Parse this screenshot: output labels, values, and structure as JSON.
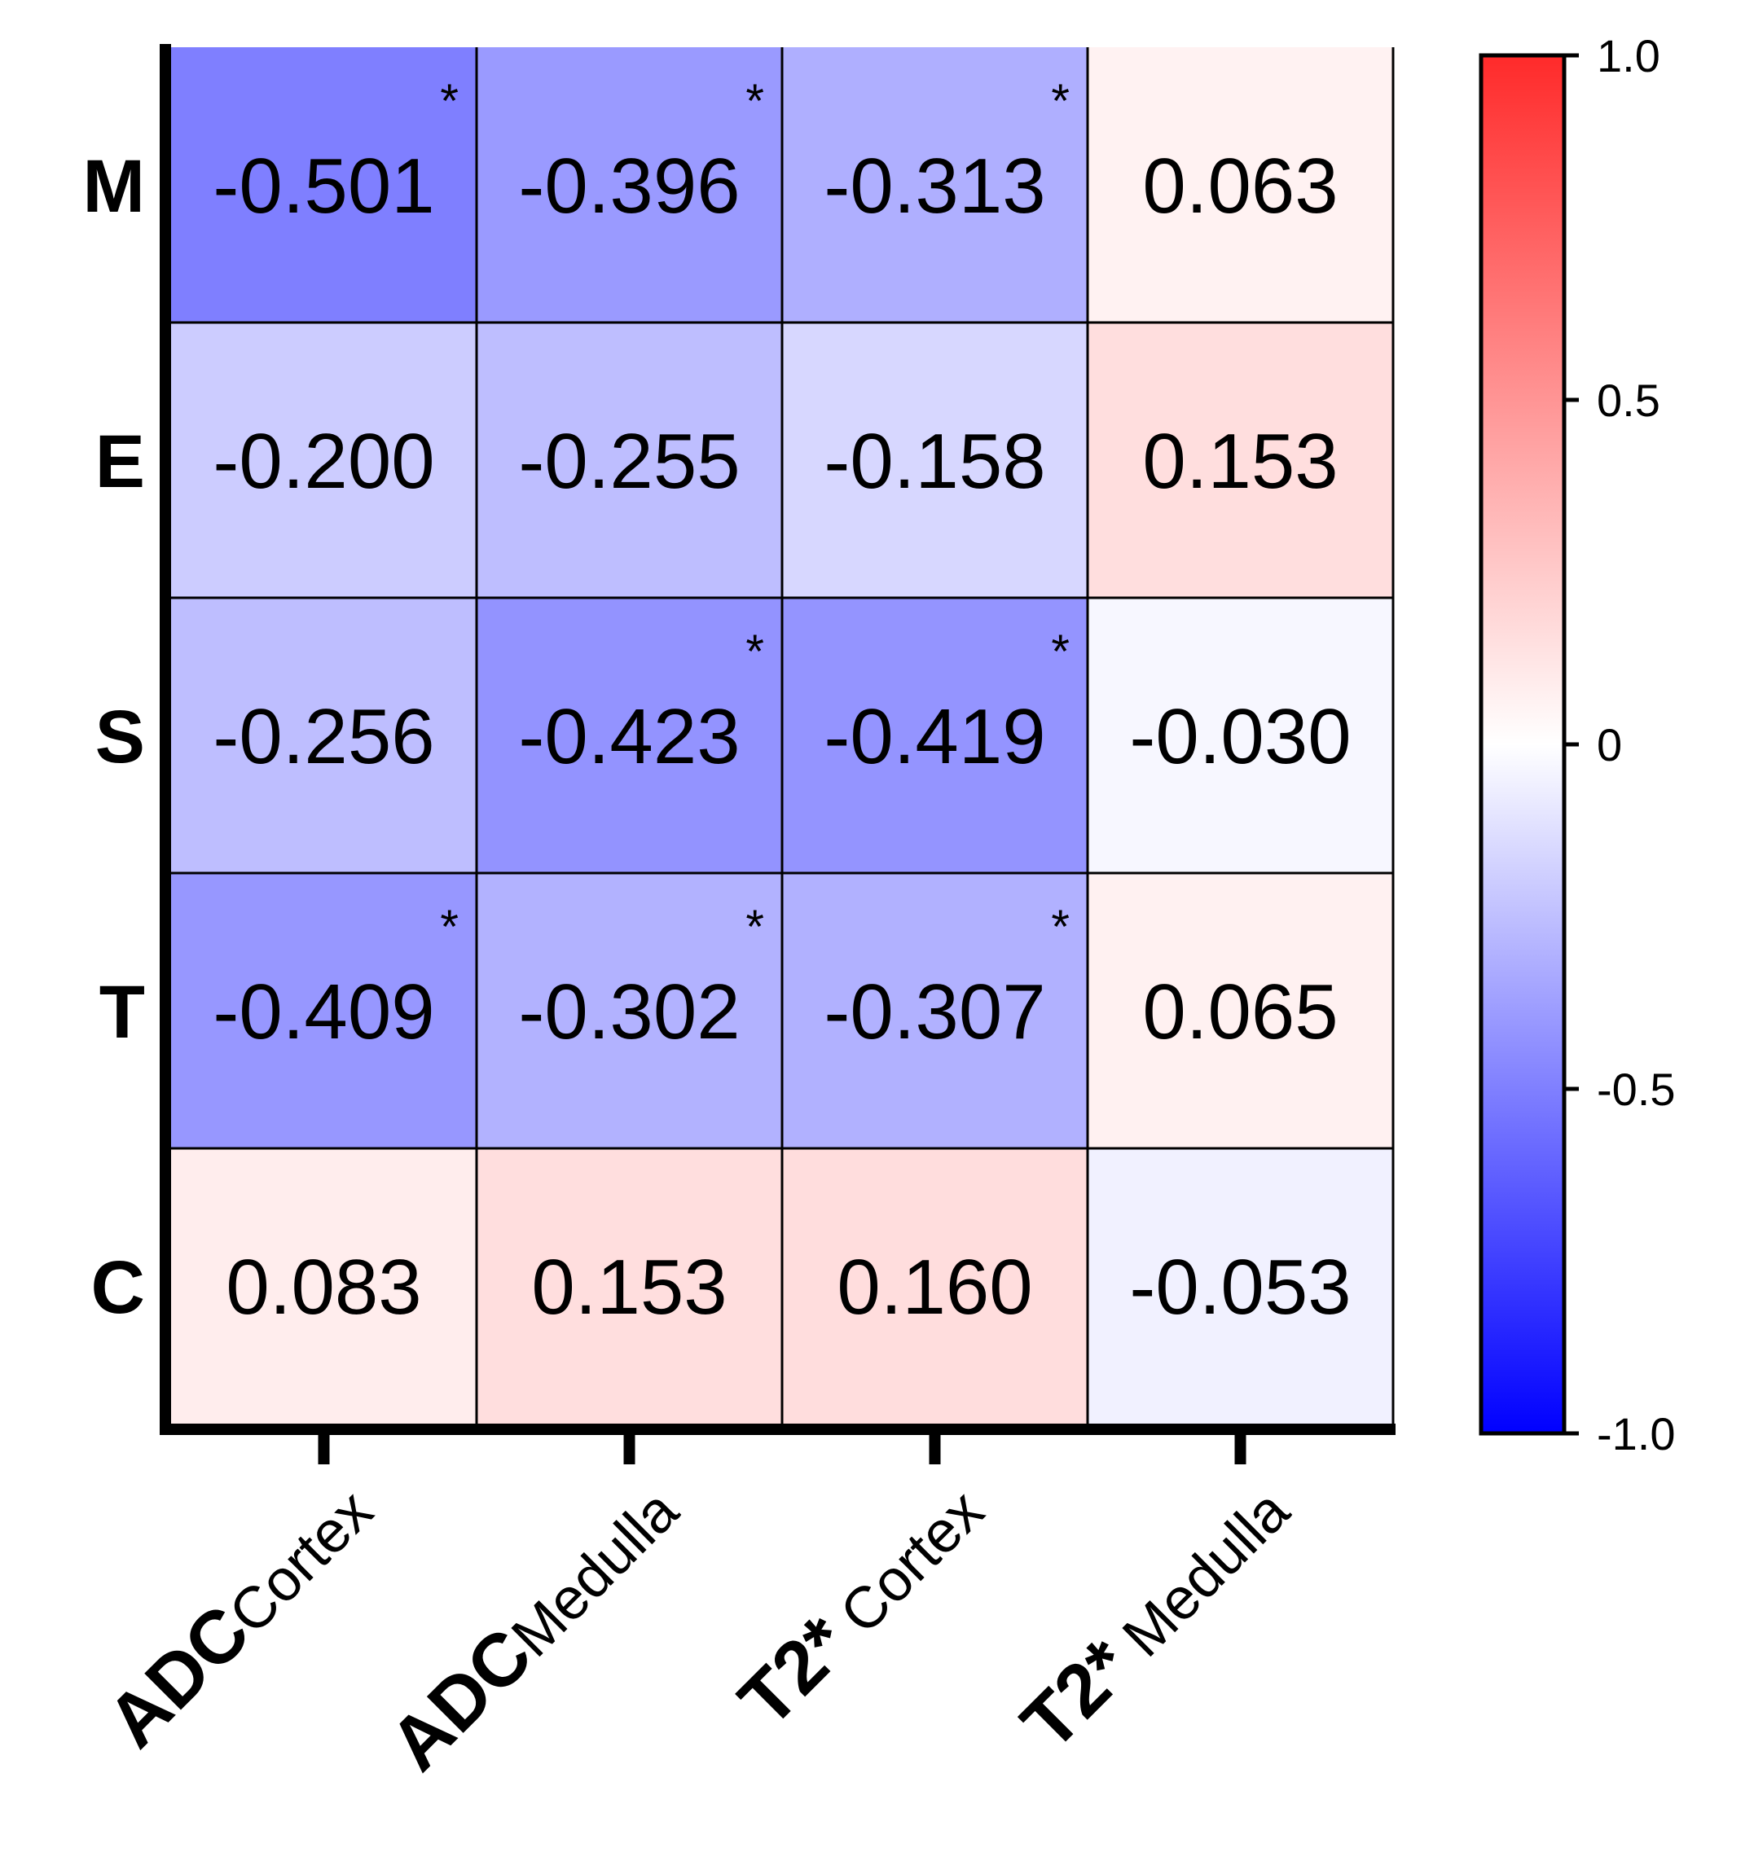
{
  "chart_data": {
    "type": "heatmap",
    "rows": [
      "M",
      "E",
      "S",
      "T",
      "C"
    ],
    "columns": [
      {
        "main": "ADC",
        "sub": "Cortex"
      },
      {
        "main": "ADC",
        "sub": "Medulla"
      },
      {
        "main": "T2*",
        "sub": " Cortex"
      },
      {
        "main": "T2*",
        "sub": " Medulla"
      }
    ],
    "values": [
      [
        -0.501,
        -0.396,
        -0.313,
        0.063
      ],
      [
        -0.2,
        -0.255,
        -0.158,
        0.153
      ],
      [
        -0.256,
        -0.423,
        -0.419,
        -0.03
      ],
      [
        -0.409,
        -0.302,
        -0.307,
        0.065
      ],
      [
        0.083,
        0.153,
        0.16,
        -0.053
      ]
    ],
    "labels": [
      [
        "-0.501",
        "-0.396",
        "-0.313",
        "0.063"
      ],
      [
        "-0.200",
        "-0.255",
        "-0.158",
        "0.153"
      ],
      [
        "-0.256",
        "-0.423",
        "-0.419",
        "-0.030"
      ],
      [
        "-0.409",
        "-0.302",
        "-0.307",
        "0.065"
      ],
      [
        "0.083",
        "0.153",
        "0.160",
        "-0.053"
      ]
    ],
    "significant": [
      [
        true,
        true,
        true,
        false
      ],
      [
        false,
        false,
        false,
        false
      ],
      [
        false,
        true,
        true,
        false
      ],
      [
        true,
        true,
        true,
        false
      ],
      [
        false,
        false,
        false,
        false
      ]
    ],
    "significance_marker": "*",
    "colorbar": {
      "range": [
        -1.0,
        1.0
      ],
      "ticks": [
        1.0,
        0.5,
        0,
        -0.5,
        -1.0
      ],
      "tick_labels": [
        "1.0",
        "0.5",
        "0",
        "-0.5",
        "-1.0"
      ],
      "color_min": "#0000ff",
      "color_mid": "#ffffff",
      "color_max": "#ff2a2a"
    }
  }
}
